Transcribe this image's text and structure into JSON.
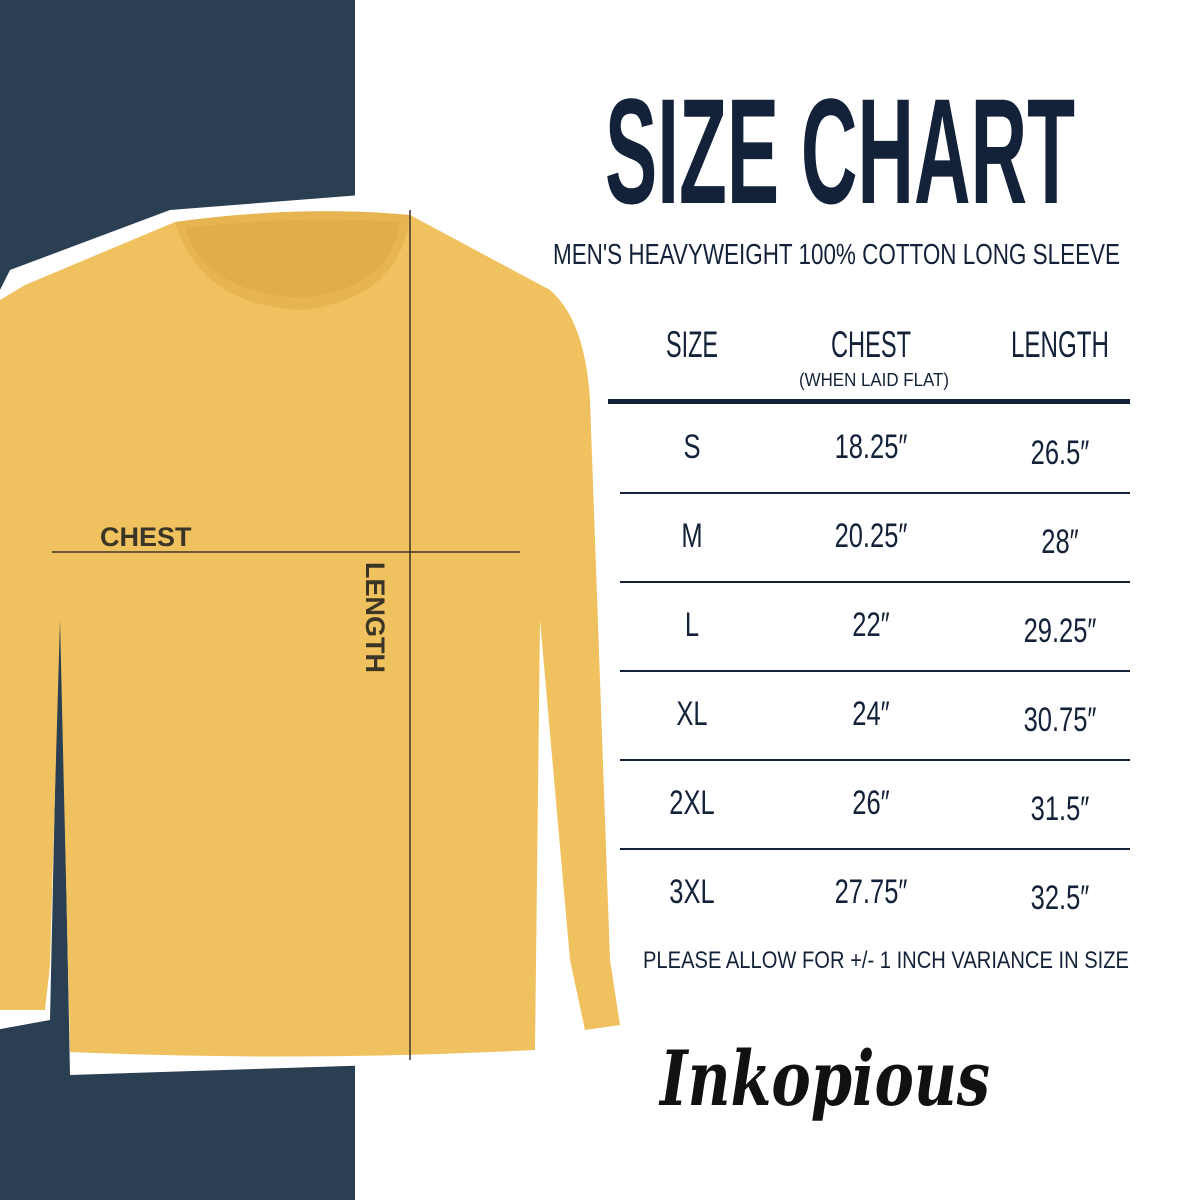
{
  "title": "SIZE CHART",
  "subtitle": "MEN'S HEAVYWEIGHT 100% COTTON LONG SLEEVE",
  "table": {
    "headers": [
      "SIZE",
      "CHEST",
      "LENGTH"
    ],
    "chest_note": "(WHEN LAID FLAT)",
    "rows": [
      [
        "S",
        "18.25″",
        "26.5″"
      ],
      [
        "M",
        "20.25″",
        "28″"
      ],
      [
        "L",
        "22″",
        "29.25″"
      ],
      [
        "XL",
        "24″",
        "30.75″"
      ],
      [
        "2XL",
        "26″",
        "31.5″"
      ],
      [
        "3XL",
        "27.75″",
        "32.5″"
      ]
    ]
  },
  "note": "PLEASE ALLOW FOR +/- 1 INCH VARIANCE IN SIZE",
  "shirt_labels": {
    "chest": "CHEST",
    "length": "LENGTH"
  },
  "brand": "Inkopious",
  "colors": {
    "navy_panel": "#2B3F52",
    "text": "#132238",
    "shirt": "#F0C25F"
  }
}
